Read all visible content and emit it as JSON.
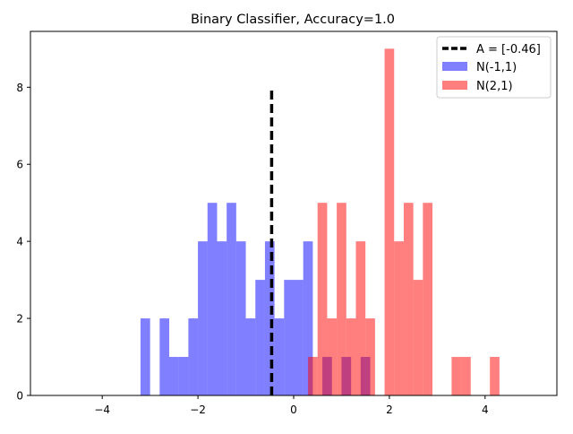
{
  "chart_data": {
    "type": "histogram",
    "title": "Binary Classifier, Accuracy=1.0",
    "xlabel": "",
    "ylabel": "",
    "xlim": [
      -5.5,
      5.5
    ],
    "ylim": [
      0,
      9.45
    ],
    "xticks": [
      -4,
      -2,
      0,
      2,
      4
    ],
    "xtick_labels": [
      "−4",
      "−2",
      "0",
      "2",
      "4"
    ],
    "yticks": [
      0,
      2,
      4,
      6,
      8
    ],
    "ytick_labels": [
      "0",
      "2",
      "4",
      "6",
      "8"
    ],
    "bin_width": 0.2,
    "threshold": {
      "label": "A = [-0.46]",
      "x": -0.46,
      "y_range": [
        0,
        8
      ],
      "color": "#000000",
      "style": "dashed"
    },
    "series": [
      {
        "name": "N(-1,1)",
        "color": "#0000ff",
        "opacity": 0.5,
        "bins": [
          {
            "x0": -3.2,
            "count": 2
          },
          {
            "x0": -2.8,
            "count": 2
          },
          {
            "x0": -2.6,
            "count": 1
          },
          {
            "x0": -2.4,
            "count": 1
          },
          {
            "x0": -2.2,
            "count": 2
          },
          {
            "x0": -2.0,
            "count": 4
          },
          {
            "x0": -1.8,
            "count": 5
          },
          {
            "x0": -1.6,
            "count": 4
          },
          {
            "x0": -1.4,
            "count": 5
          },
          {
            "x0": -1.2,
            "count": 4
          },
          {
            "x0": -1.0,
            "count": 2
          },
          {
            "x0": -0.8,
            "count": 3
          },
          {
            "x0": -0.6,
            "count": 4
          },
          {
            "x0": -0.4,
            "count": 2
          },
          {
            "x0": -0.2,
            "count": 3
          },
          {
            "x0": 0.0,
            "count": 3
          },
          {
            "x0": 0.2,
            "count": 4
          },
          {
            "x0": 0.6,
            "count": 1
          },
          {
            "x0": 1.0,
            "count": 1
          },
          {
            "x0": 1.4,
            "count": 1
          }
        ]
      },
      {
        "name": "N(2,1)",
        "color": "#ff0000",
        "opacity": 0.5,
        "bins": [
          {
            "x0": 0.3,
            "count": 1
          },
          {
            "x0": 0.5,
            "count": 5
          },
          {
            "x0": 0.7,
            "count": 2
          },
          {
            "x0": 0.9,
            "count": 5
          },
          {
            "x0": 1.1,
            "count": 2
          },
          {
            "x0": 1.3,
            "count": 4
          },
          {
            "x0": 1.5,
            "count": 2
          },
          {
            "x0": 1.9,
            "count": 9
          },
          {
            "x0": 2.1,
            "count": 4
          },
          {
            "x0": 2.3,
            "count": 5
          },
          {
            "x0": 2.5,
            "count": 3
          },
          {
            "x0": 2.7,
            "count": 5
          },
          {
            "x0": 3.3,
            "count": 1
          },
          {
            "x0": 3.5,
            "count": 1
          },
          {
            "x0": 4.1,
            "count": 1
          }
        ]
      }
    ],
    "legend_position": "upper right"
  }
}
